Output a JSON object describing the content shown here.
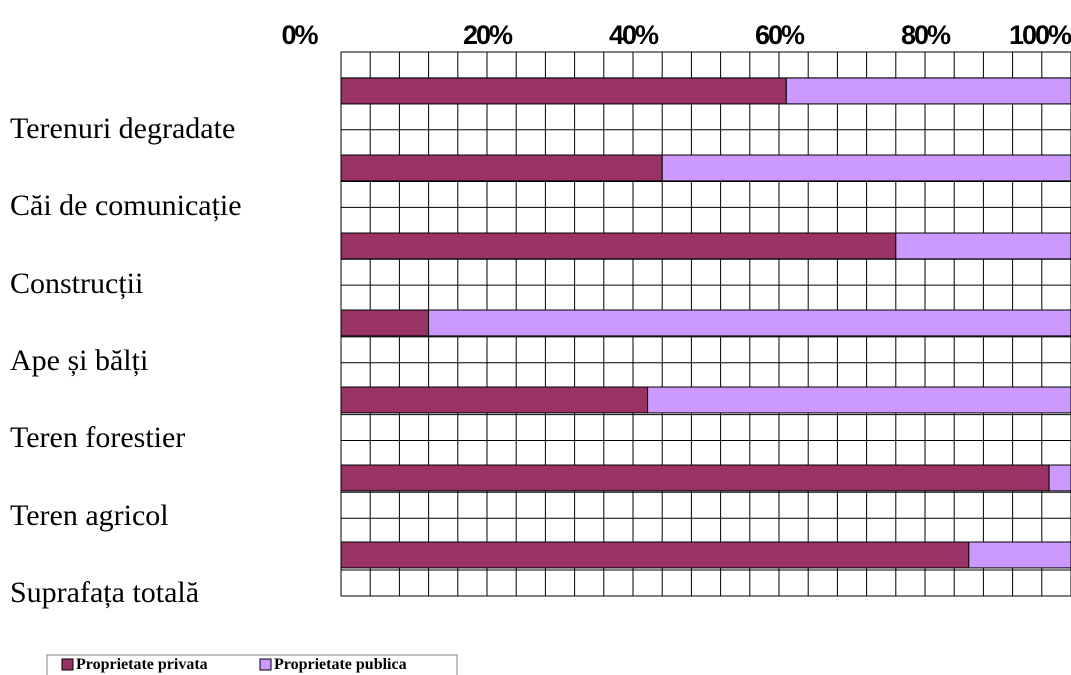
{
  "chart_data": {
    "type": "bar",
    "orientation": "horizontal",
    "stacked": true,
    "percent": true,
    "categories": [
      "Terenuri degradate",
      "Căi de comunicație",
      "Construcții",
      "Ape și bălți",
      "Teren forestier",
      "Teren agricol",
      "Suprafața totală"
    ],
    "x_ticks": [
      "0%",
      "20%",
      "40%",
      "60%",
      "80%",
      "100%"
    ],
    "xlim": [
      0,
      100
    ],
    "grid": true,
    "legend_position": "bottom-left",
    "series": [
      {
        "name": "Proprietate privata",
        "color": "#993366",
        "values": [
          61,
          44,
          76,
          12,
          42,
          97,
          86
        ]
      },
      {
        "name": "Proprietate publica",
        "color": "#cc99ff",
        "values": [
          39,
          56,
          24,
          88,
          58,
          3,
          14
        ]
      }
    ]
  }
}
